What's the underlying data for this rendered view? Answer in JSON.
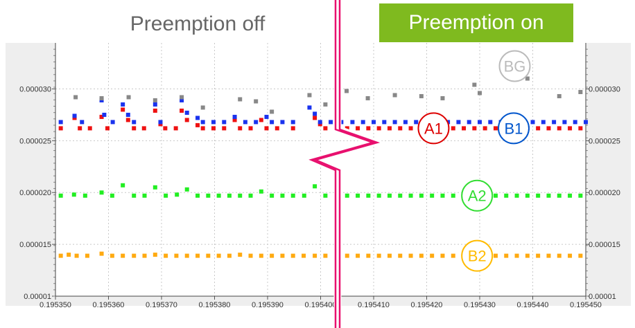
{
  "titles": {
    "left": "Preemption off",
    "right": "Preemption on"
  },
  "colors": {
    "A1": "#ee1111",
    "B1": "#1a33ee",
    "A2": "#22ee22",
    "B2": "#ffaa11",
    "BG": "#888888",
    "on_banner": "#7fba1f",
    "break_line": "#e8106e",
    "circle_A1": "#dd0000",
    "circle_B1": "#0055cc",
    "circle_A2": "#33dd33",
    "circle_B2": "#ffbb00",
    "circle_BG": "#bbbbbb"
  },
  "chart_data": {
    "type": "scatter",
    "title": "",
    "xlabel": "",
    "ylabel": "",
    "xlim": [
      0.19535,
      0.19545
    ],
    "ylim": [
      1e-05,
      3.444e-05
    ],
    "grid": true,
    "x_ticks": [
      "0.195350",
      "0.195360",
      "0.195370",
      "0.195380",
      "0.195390",
      "0.195400",
      "0.195410",
      "0.195420",
      "0.195430",
      "0.195440",
      "0.195450"
    ],
    "y_ticks_left": [
      "0.00001",
      "0.000015",
      "0.000020",
      "0.000025",
      "0.000030"
    ],
    "y_ticks_right": [
      "0.00001",
      "0.000015",
      "0.000020",
      "0.000025",
      "0.000030"
    ],
    "callouts": [
      {
        "label": "BG",
        "series": "BG"
      },
      {
        "label": "A1",
        "series": "A1"
      },
      {
        "label": "B1",
        "series": "B1"
      },
      {
        "label": "A2",
        "series": "A2"
      },
      {
        "label": "B2",
        "series": "B2"
      }
    ],
    "series": [
      {
        "name": "A1",
        "points": [
          [
            0.195351,
            2.62e-05
          ],
          [
            0.1953536,
            2.72e-05
          ],
          [
            0.1953546,
            2.62e-05
          ],
          [
            0.1953565,
            2.62e-05
          ],
          [
            0.1953587,
            2.73e-05
          ],
          [
            0.1953598,
            2.62e-05
          ],
          [
            0.1953627,
            2.8e-05
          ],
          [
            0.1953637,
            2.7e-05
          ],
          [
            0.1953648,
            2.62e-05
          ],
          [
            0.1953667,
            2.62e-05
          ],
          [
            0.1953688,
            2.79e-05
          ],
          [
            0.1953698,
            2.66e-05
          ],
          [
            0.1953707,
            2.62e-05
          ],
          [
            0.1953727,
            2.62e-05
          ],
          [
            0.1953738,
            2.79e-05
          ],
          [
            0.1953748,
            2.7e-05
          ],
          [
            0.1953768,
            2.65e-05
          ],
          [
            0.1953778,
            2.62e-05
          ],
          [
            0.1953798,
            2.62e-05
          ],
          [
            0.1953818,
            2.62e-05
          ],
          [
            0.1953838,
            2.7e-05
          ],
          [
            0.1953848,
            2.62e-05
          ],
          [
            0.1953868,
            2.62e-05
          ],
          [
            0.1953888,
            2.7e-05
          ],
          [
            0.1953898,
            2.62e-05
          ],
          [
            0.1953918,
            2.62e-05
          ],
          [
            0.1953948,
            2.62e-05
          ],
          [
            0.1953989,
            2.72e-05
          ],
          [
            0.1953999,
            2.66e-05
          ],
          [
            0.1954009,
            2.62e-05
          ],
          [
            0.1954029,
            2.62e-05
          ],
          [
            0.195405,
            2.62e-05
          ],
          [
            0.195407,
            2.62e-05
          ],
          [
            0.195409,
            2.62e-05
          ],
          [
            0.195411,
            2.62e-05
          ],
          [
            0.195413,
            2.62e-05
          ],
          [
            0.195415,
            2.62e-05
          ],
          [
            0.195417,
            2.62e-05
          ],
          [
            0.195419,
            2.62e-05
          ],
          [
            0.195421,
            2.62e-05
          ],
          [
            0.195423,
            2.62e-05
          ],
          [
            0.195425,
            2.62e-05
          ],
          [
            0.195427,
            2.62e-05
          ],
          [
            0.195429,
            2.62e-05
          ],
          [
            0.195431,
            2.62e-05
          ],
          [
            0.195433,
            2.62e-05
          ],
          [
            0.195435,
            2.62e-05
          ],
          [
            0.195437,
            2.62e-05
          ],
          [
            0.195439,
            2.62e-05
          ],
          [
            0.195441,
            2.62e-05
          ],
          [
            0.195443,
            2.62e-05
          ],
          [
            0.195445,
            2.62e-05
          ],
          [
            0.195447,
            2.62e-05
          ],
          [
            0.195449,
            2.62e-05
          ]
        ]
      },
      {
        "name": "B1",
        "points": [
          [
            0.195351,
            2.68e-05
          ],
          [
            0.1953536,
            2.74e-05
          ],
          [
            0.195355,
            2.68e-05
          ],
          [
            0.1953587,
            2.89e-05
          ],
          [
            0.1953592,
            2.75e-05
          ],
          [
            0.1953608,
            2.68e-05
          ],
          [
            0.1953627,
            2.85e-05
          ],
          [
            0.1953637,
            2.75e-05
          ],
          [
            0.1953648,
            2.68e-05
          ],
          [
            0.1953688,
            2.85e-05
          ],
          [
            0.1953698,
            2.68e-05
          ],
          [
            0.1953738,
            2.89e-05
          ],
          [
            0.1953748,
            2.77e-05
          ],
          [
            0.1953768,
            2.72e-05
          ],
          [
            0.1953778,
            2.68e-05
          ],
          [
            0.1953798,
            2.68e-05
          ],
          [
            0.1953818,
            2.68e-05
          ],
          [
            0.1953838,
            2.73e-05
          ],
          [
            0.1953858,
            2.68e-05
          ],
          [
            0.1953878,
            2.68e-05
          ],
          [
            0.1953898,
            2.73e-05
          ],
          [
            0.1953908,
            2.68e-05
          ],
          [
            0.1953928,
            2.68e-05
          ],
          [
            0.1953948,
            2.68e-05
          ],
          [
            0.1953979,
            2.82e-05
          ],
          [
            0.1953989,
            2.76e-05
          ],
          [
            0.1953999,
            2.68e-05
          ],
          [
            0.1954019,
            2.68e-05
          ],
          [
            0.1954039,
            2.68e-05
          ],
          [
            0.195406,
            2.68e-05
          ],
          [
            0.195408,
            2.68e-05
          ],
          [
            0.19541,
            2.68e-05
          ],
          [
            0.195412,
            2.68e-05
          ],
          [
            0.195414,
            2.68e-05
          ],
          [
            0.195416,
            2.68e-05
          ],
          [
            0.195418,
            2.68e-05
          ],
          [
            0.19542,
            2.68e-05
          ],
          [
            0.195422,
            2.68e-05
          ],
          [
            0.195424,
            2.68e-05
          ],
          [
            0.195426,
            2.68e-05
          ],
          [
            0.195428,
            2.68e-05
          ],
          [
            0.19543,
            2.68e-05
          ],
          [
            0.195432,
            2.68e-05
          ],
          [
            0.195434,
            2.68e-05
          ],
          [
            0.195436,
            2.68e-05
          ],
          [
            0.195438,
            2.68e-05
          ],
          [
            0.19544,
            2.68e-05
          ],
          [
            0.195442,
            2.68e-05
          ],
          [
            0.195444,
            2.68e-05
          ],
          [
            0.195446,
            2.68e-05
          ],
          [
            0.195448,
            2.68e-05
          ],
          [
            0.19545,
            2.68e-05
          ]
        ]
      },
      {
        "name": "A2",
        "points": [
          [
            0.195351,
            1.97e-05
          ],
          [
            0.1953535,
            1.98e-05
          ],
          [
            0.1953556,
            1.97e-05
          ],
          [
            0.1953587,
            2e-05
          ],
          [
            0.1953607,
            1.97e-05
          ],
          [
            0.1953627,
            2.07e-05
          ],
          [
            0.1953648,
            1.97e-05
          ],
          [
            0.1953668,
            1.97e-05
          ],
          [
            0.1953688,
            2.05e-05
          ],
          [
            0.1953708,
            1.97e-05
          ],
          [
            0.1953729,
            1.98e-05
          ],
          [
            0.1953748,
            2.03e-05
          ],
          [
            0.1953768,
            1.97e-05
          ],
          [
            0.1953788,
            1.97e-05
          ],
          [
            0.1953808,
            1.97e-05
          ],
          [
            0.1953828,
            1.97e-05
          ],
          [
            0.1953848,
            1.97e-05
          ],
          [
            0.1953868,
            1.97e-05
          ],
          [
            0.1953888,
            2.01e-05
          ],
          [
            0.1953908,
            1.97e-05
          ],
          [
            0.1953928,
            1.97e-05
          ],
          [
            0.1953948,
            1.97e-05
          ],
          [
            0.1953969,
            1.97e-05
          ],
          [
            0.1953989,
            2.06e-05
          ],
          [
            0.1954009,
            1.97e-05
          ],
          [
            0.1954029,
            2.06e-05
          ],
          [
            0.195405,
            1.97e-05
          ],
          [
            0.195407,
            1.97e-05
          ],
          [
            0.195409,
            1.97e-05
          ],
          [
            0.195411,
            1.97e-05
          ],
          [
            0.195413,
            1.97e-05
          ],
          [
            0.195415,
            1.97e-05
          ],
          [
            0.195417,
            1.97e-05
          ],
          [
            0.195419,
            1.97e-05
          ],
          [
            0.195421,
            1.97e-05
          ],
          [
            0.195423,
            1.97e-05
          ],
          [
            0.195425,
            1.97e-05
          ],
          [
            0.195427,
            1.97e-05
          ],
          [
            0.195433,
            1.97e-05
          ],
          [
            0.195435,
            1.97e-05
          ],
          [
            0.195437,
            1.97e-05
          ],
          [
            0.195439,
            1.97e-05
          ],
          [
            0.195441,
            1.97e-05
          ],
          [
            0.195443,
            1.97e-05
          ],
          [
            0.195445,
            1.97e-05
          ],
          [
            0.195447,
            1.97e-05
          ],
          [
            0.195449,
            1.97e-05
          ]
        ]
      },
      {
        "name": "B2",
        "points": [
          [
            0.195351,
            1.39e-05
          ],
          [
            0.1953525,
            1.4e-05
          ],
          [
            0.195354,
            1.39e-05
          ],
          [
            0.195356,
            1.39e-05
          ],
          [
            0.1953587,
            1.41e-05
          ],
          [
            0.1953607,
            1.39e-05
          ],
          [
            0.1953627,
            1.39e-05
          ],
          [
            0.1953648,
            1.39e-05
          ],
          [
            0.1953668,
            1.39e-05
          ],
          [
            0.1953688,
            1.4e-05
          ],
          [
            0.1953708,
            1.39e-05
          ],
          [
            0.1953728,
            1.39e-05
          ],
          [
            0.1953748,
            1.39e-05
          ],
          [
            0.1953768,
            1.39e-05
          ],
          [
            0.1953788,
            1.39e-05
          ],
          [
            0.1953808,
            1.39e-05
          ],
          [
            0.1953828,
            1.39e-05
          ],
          [
            0.1953848,
            1.4e-05
          ],
          [
            0.1953868,
            1.39e-05
          ],
          [
            0.1953888,
            1.39e-05
          ],
          [
            0.1953908,
            1.39e-05
          ],
          [
            0.1953928,
            1.39e-05
          ],
          [
            0.1953948,
            1.39e-05
          ],
          [
            0.1953968,
            1.39e-05
          ],
          [
            0.1953989,
            1.39e-05
          ],
          [
            0.1954009,
            1.39e-05
          ],
          [
            0.1954029,
            1.39e-05
          ],
          [
            0.195405,
            1.39e-05
          ],
          [
            0.195407,
            1.39e-05
          ],
          [
            0.195409,
            1.39e-05
          ],
          [
            0.195411,
            1.39e-05
          ],
          [
            0.195413,
            1.39e-05
          ],
          [
            0.195415,
            1.39e-05
          ],
          [
            0.195417,
            1.39e-05
          ],
          [
            0.195419,
            1.39e-05
          ],
          [
            0.195421,
            1.39e-05
          ],
          [
            0.195423,
            1.39e-05
          ],
          [
            0.195425,
            1.39e-05
          ],
          [
            0.195427,
            1.39e-05
          ],
          [
            0.195433,
            1.39e-05
          ],
          [
            0.195435,
            1.39e-05
          ],
          [
            0.195437,
            1.39e-05
          ],
          [
            0.195439,
            1.39e-05
          ],
          [
            0.195441,
            1.39e-05
          ],
          [
            0.195443,
            1.39e-05
          ],
          [
            0.195445,
            1.39e-05
          ],
          [
            0.195447,
            1.39e-05
          ],
          [
            0.195449,
            1.39e-05
          ]
        ]
      },
      {
        "name": "BG",
        "points": [
          [
            0.1953538,
            2.92e-05
          ],
          [
            0.1953587,
            2.91e-05
          ],
          [
            0.1953638,
            2.92e-05
          ],
          [
            0.1953688,
            2.89e-05
          ],
          [
            0.1953738,
            2.92e-05
          ],
          [
            0.1953778,
            2.82e-05
          ],
          [
            0.1953848,
            2.9e-05
          ],
          [
            0.1953878,
            2.88e-05
          ],
          [
            0.1953908,
            2.78e-05
          ],
          [
            0.1953979,
            2.94e-05
          ],
          [
            0.1954009,
            2.85e-05
          ],
          [
            0.1954049,
            2.98e-05
          ],
          [
            0.1954089,
            2.91e-05
          ],
          [
            0.195414,
            2.94e-05
          ],
          [
            0.195419,
            2.93e-05
          ],
          [
            0.195423,
            2.91e-05
          ],
          [
            0.195429,
            3.04e-05
          ],
          [
            0.19543,
            2.96e-05
          ],
          [
            0.195439,
            3.1e-05
          ],
          [
            0.195445,
            2.93e-05
          ],
          [
            0.195449,
            2.97e-05
          ]
        ]
      }
    ]
  }
}
